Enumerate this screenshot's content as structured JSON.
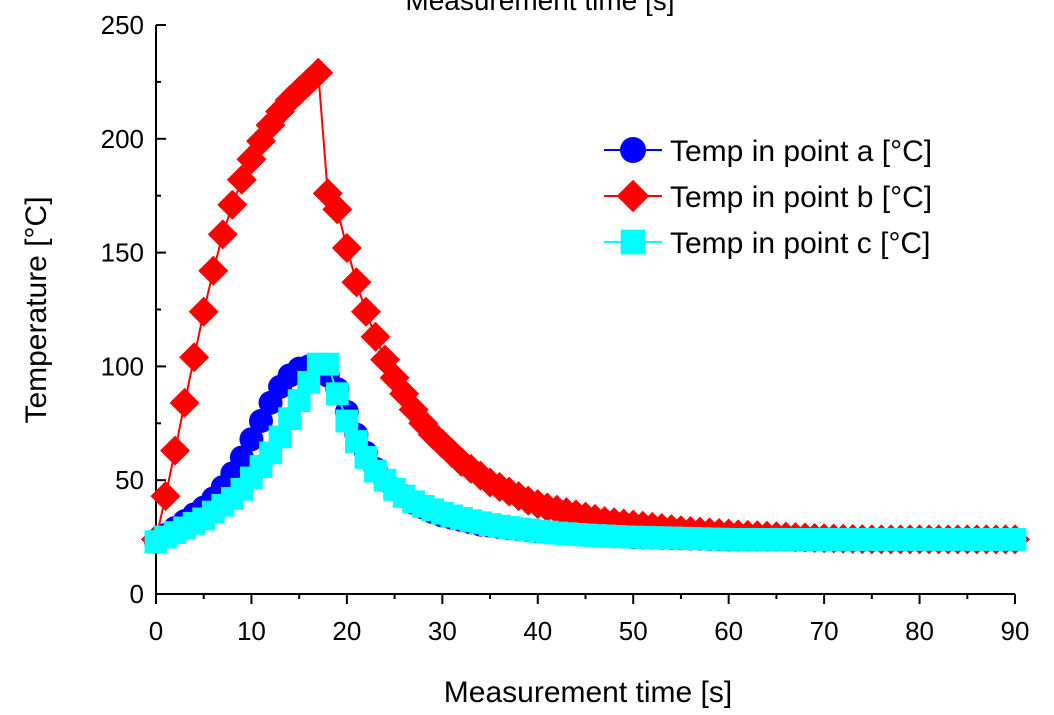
{
  "chart_data": {
    "type": "line",
    "title": "Measurement time [s]",
    "xlabel": "Measurement time [s]",
    "ylabel": "Temperature [°C]",
    "xlim": [
      0,
      90
    ],
    "ylim": [
      0,
      250
    ],
    "xticks": [
      0,
      10,
      20,
      30,
      40,
      50,
      60,
      70,
      80,
      90
    ],
    "yticks": [
      0,
      50,
      100,
      150,
      200,
      250
    ],
    "grid": false,
    "legend_position": "top-right",
    "x": [
      0,
      1,
      2,
      3,
      4,
      5,
      6,
      7,
      8,
      9,
      10,
      11,
      12,
      13,
      14,
      15,
      16,
      17,
      18,
      19,
      20,
      21,
      22,
      23,
      24,
      25,
      26,
      27,
      28,
      29,
      30,
      31,
      32,
      33,
      34,
      35,
      36,
      37,
      38,
      39,
      40,
      41,
      42,
      43,
      44,
      45,
      46,
      47,
      48,
      49,
      50,
      51,
      52,
      53,
      54,
      55,
      56,
      57,
      58,
      59,
      60,
      61,
      62,
      63,
      64,
      65,
      66,
      67,
      68,
      69,
      70,
      71,
      72,
      73,
      74,
      75,
      76,
      77,
      78,
      79,
      80,
      81,
      82,
      83,
      84,
      85,
      86,
      87,
      88,
      89,
      90
    ],
    "series": [
      {
        "name": "Temp in point a [°C]",
        "color": "#0000ff",
        "marker": "circle",
        "values": [
          23,
          26,
          29,
          32,
          35,
          38,
          42,
          47,
          53,
          60,
          68,
          76,
          84,
          91,
          96,
          99,
          100,
          99,
          96,
          90,
          80,
          70,
          62,
          55,
          50,
          46,
          43,
          40,
          38,
          36,
          34.5,
          33.5,
          32.5,
          31.5,
          30.5,
          30,
          29.5,
          29,
          28.5,
          28,
          27.5,
          27.2,
          26.9,
          26.6,
          26.3,
          26,
          25.8,
          25.6,
          25.4,
          25.2,
          25,
          24.9,
          24.8,
          24.7,
          24.6,
          24.5,
          24.4,
          24.3,
          24.2,
          24.1,
          24,
          24,
          24,
          24,
          24,
          24,
          24,
          24,
          24,
          24,
          24,
          24,
          24,
          24,
          24,
          24,
          24,
          24,
          24,
          24,
          24,
          24,
          24,
          24,
          24,
          24,
          24,
          24,
          24,
          24,
          24
        ]
      },
      {
        "name": "Temp in point b [°C]",
        "color": "#ff0000",
        "marker": "diamond",
        "values": [
          24,
          43,
          63,
          84,
          104,
          124,
          142,
          158,
          171,
          182,
          191,
          199,
          206,
          212,
          217,
          221,
          225,
          229,
          176,
          169,
          152,
          137,
          124,
          113,
          103,
          95,
          88,
          81,
          75,
          70,
          66,
          62,
          58,
          55,
          52,
          49,
          47,
          45,
          43,
          41,
          39.5,
          38,
          37,
          36,
          35,
          34,
          33,
          32,
          31.5,
          31,
          30.5,
          30,
          29.5,
          29,
          28.5,
          28,
          27.7,
          27.4,
          27.1,
          26.8,
          26.5,
          26.2,
          26,
          25.8,
          25.6,
          25.4,
          25.2,
          25,
          24.8,
          24.6,
          24.5,
          24.4,
          24.3,
          24.2,
          24.1,
          24,
          24,
          24,
          24,
          24,
          24,
          24,
          24,
          24,
          24,
          24,
          24,
          24,
          24,
          24,
          24
        ]
      },
      {
        "name": "Temp in point c [°C]",
        "color": "#00ffff",
        "marker": "square",
        "values": [
          23,
          25,
          27,
          29,
          31,
          33,
          36,
          39,
          42,
          46,
          51,
          56,
          62,
          69,
          77,
          85,
          93,
          101,
          101,
          88,
          76,
          67,
          60,
          54,
          50,
          46,
          43,
          40.5,
          38.5,
          37,
          35.5,
          34.3,
          33.2,
          32.2,
          31.3,
          30.5,
          29.8,
          29.2,
          28.6,
          28.1,
          27.6,
          27.2,
          26.8,
          26.5,
          26.2,
          25.9,
          25.7,
          25.5,
          25.3,
          25.1,
          25,
          24.9,
          24.8,
          24.7,
          24.6,
          24.5,
          24.4,
          24.3,
          24.2,
          24.1,
          24,
          24,
          24,
          24,
          24,
          24,
          24,
          24,
          24,
          24,
          24,
          24,
          24,
          24,
          24,
          24,
          24,
          24,
          24,
          24,
          24,
          24,
          24,
          24,
          24,
          24,
          24,
          24,
          24,
          24,
          24
        ]
      }
    ]
  }
}
